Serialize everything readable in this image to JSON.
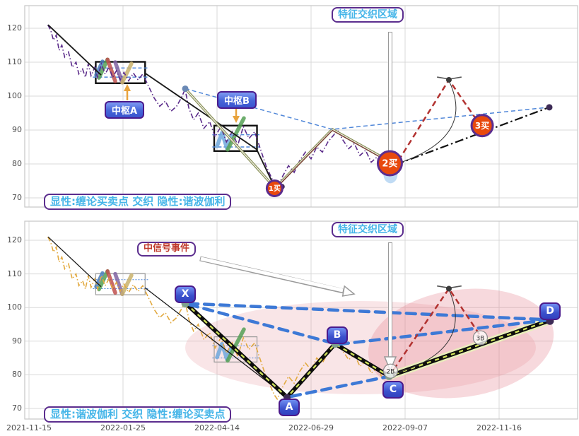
{
  "labels": {
    "feature_zone_top": "特征交织区域",
    "feature_zone_bottom": "特征交织区域",
    "pivot_a": "中枢A",
    "pivot_b": "中枢B",
    "signal_event": "中信号事件",
    "mode_top": "显性:缠论买卖点 交织 隐性:谐波伽利",
    "mode_bottom": "显性:谐波伽利 交织 隐性:缠论买卖点",
    "letter_x": "X",
    "letter_a": "A",
    "letter_b": "B",
    "letter_c": "C",
    "letter_d": "D"
  },
  "chart_data": {
    "type": "line",
    "x_dates": [
      "2021-11-15",
      "2022-01-25",
      "2022-04-14",
      "2022-06-29",
      "2022-09-07",
      "2022-11-16"
    ],
    "y_ticks": [
      120,
      110,
      100,
      90,
      80,
      70
    ],
    "ylim": [
      66.5,
      126.5
    ],
    "price_pts": [
      [
        0.2,
        121
      ],
      [
        0.23,
        119.5
      ],
      [
        0.26,
        116.5
      ],
      [
        0.29,
        118
      ],
      [
        0.32,
        113.5
      ],
      [
        0.35,
        115
      ],
      [
        0.38,
        111.5
      ],
      [
        0.42,
        113
      ],
      [
        0.46,
        108.5
      ],
      [
        0.5,
        110
      ],
      [
        0.53,
        106.5
      ],
      [
        0.57,
        108
      ],
      [
        0.6,
        105.5
      ],
      [
        0.63,
        109.5
      ],
      [
        0.66,
        106
      ],
      [
        0.7,
        108.5
      ],
      [
        0.73,
        105.5
      ],
      [
        0.77,
        109.5
      ],
      [
        0.81,
        106.5
      ],
      [
        0.85,
        108.5
      ],
      [
        0.89,
        105.5
      ],
      [
        0.93,
        107.5
      ],
      [
        0.97,
        104.8
      ],
      [
        1.01,
        107
      ],
      [
        1.06,
        104.5
      ],
      [
        1.11,
        106.8
      ],
      [
        1.16,
        104.8
      ],
      [
        1.21,
        106.5
      ],
      [
        1.27,
        103
      ],
      [
        1.33,
        99.5
      ],
      [
        1.39,
        97
      ],
      [
        1.45,
        98.5
      ],
      [
        1.51,
        95.5
      ],
      [
        1.57,
        97
      ],
      [
        1.62,
        99.5
      ],
      [
        1.66,
        102
      ],
      [
        1.7,
        96.5
      ],
      [
        1.75,
        93
      ],
      [
        1.8,
        95
      ],
      [
        1.86,
        90.5
      ],
      [
        1.92,
        92.5
      ],
      [
        1.98,
        88
      ],
      [
        2.04,
        91
      ],
      [
        2.1,
        86.5
      ],
      [
        2.16,
        89.5
      ],
      [
        2.22,
        85.5
      ],
      [
        2.28,
        91
      ],
      [
        2.34,
        87.5
      ],
      [
        2.4,
        89.5
      ],
      [
        2.46,
        84.5
      ],
      [
        2.52,
        79.5
      ],
      [
        2.57,
        76.5
      ],
      [
        2.61,
        74
      ],
      [
        2.64,
        72.8
      ],
      [
        2.7,
        76.5
      ],
      [
        2.76,
        79.5
      ],
      [
        2.82,
        77.5
      ],
      [
        2.88,
        81
      ],
      [
        2.94,
        83.5
      ],
      [
        3.0,
        81.5
      ],
      [
        3.06,
        85
      ],
      [
        3.12,
        83.5
      ],
      [
        3.18,
        86.5
      ],
      [
        3.24,
        88.5
      ],
      [
        3.28,
        90
      ],
      [
        3.34,
        87
      ],
      [
        3.4,
        84.5
      ],
      [
        3.46,
        86
      ],
      [
        3.52,
        82.5
      ],
      [
        3.58,
        84
      ],
      [
        3.64,
        80.5
      ],
      [
        3.7,
        82
      ],
      [
        3.76,
        79
      ],
      [
        3.82,
        80.5
      ],
      [
        3.87,
        79.5
      ]
    ],
    "panels": [
      {
        "name": "chan-buy-points-panel",
        "price_style": "price-purple",
        "lines": [
          {
            "s": "seg-black",
            "p": [
              [
                0.203,
                121
              ],
              [
                0.767,
                106.2
              ]
            ]
          },
          {
            "s": "seg-black",
            "p": [
              [
                1.233,
                106.8
              ],
              [
                2.421,
                84.3
              ],
              [
                2.617,
                72.9
              ],
              [
                3.226,
                90.2
              ],
              [
                3.878,
                80.1
              ]
            ]
          },
          {
            "s": "olive",
            "p": [
              [
                1.662,
                102.2
              ],
              [
                2.617,
                72.9
              ],
              [
                3.226,
                90.2
              ],
              [
                3.878,
                80.1
              ]
            ]
          },
          {
            "s": "olive-core",
            "p": [
              [
                1.662,
                102.2
              ],
              [
                2.617,
                72.9
              ],
              [
                3.226,
                90.2
              ],
              [
                3.878,
                80.1
              ]
            ]
          },
          {
            "s": "brown",
            "p": [
              [
                2.617,
                72.6
              ],
              [
                3.226,
                89.9
              ],
              [
                3.878,
                79.8
              ]
            ]
          },
          {
            "s": "trend-dash",
            "p": [
              [
                1.662,
                102.2
              ],
              [
                3.226,
                90.2
              ],
              [
                5.534,
                96.7
              ]
            ]
          },
          {
            "s": "dashdot-black",
            "p": [
              [
                3.9,
                79.8
              ],
              [
                5.534,
                96.7
              ]
            ]
          },
          {
            "s": "red-dash",
            "p": [
              [
                3.93,
                81.0
              ],
              [
                4.466,
                104.8
              ],
              [
                4.79,
                91.8
              ]
            ]
          },
          {
            "s": "hat",
            "p": [
              [
                4.34,
                105.6
              ],
              [
                4.45,
                105.1
              ]
            ]
          },
          {
            "s": "hat",
            "p": [
              [
                4.49,
                105.1
              ],
              [
                4.6,
                105.6
              ]
            ]
          }
        ],
        "curves": [
          {
            "s": "arc",
            "p": [
              [
                3.94,
                80.3
              ],
              [
                4.75,
                88.0
              ],
              [
                4.468,
                104.4
              ]
            ]
          }
        ],
        "boxes": [
          {
            "x0": 0.71,
            "x1": 1.235,
            "v0": 103.8,
            "v1": 110.1,
            "cls": "box-black",
            "levels": [
              105.6,
              108.3
            ],
            "lcls": "inner-dash",
            "lx0": 0.68,
            "lx1": 1.27
          },
          {
            "x0": 1.97,
            "x1": 2.425,
            "v0": 83.8,
            "v1": 91.3,
            "cls": "box-black",
            "levels": [
              85.0,
              88.6
            ],
            "lcls": "inner-dash",
            "lx0": 1.95,
            "lx1": 2.45
          }
        ],
        "strokes": [
          {
            "c": "st-blue",
            "p": [
              [
                0.714,
                106.2
              ],
              [
                0.782,
                110.2
              ]
            ]
          },
          {
            "c": "st-green",
            "p": [
              [
                0.744,
                105.4
              ],
              [
                0.835,
                110.8
              ]
            ]
          },
          {
            "c": "st-red",
            "p": [
              [
                0.835,
                110.8
              ],
              [
                0.917,
                104.4
              ]
            ]
          },
          {
            "c": "st-purple",
            "p": [
              [
                0.917,
                110.0
              ],
              [
                0.992,
                104.0
              ]
            ]
          },
          {
            "c": "st-tan",
            "p": [
              [
                0.992,
                104.0
              ],
              [
                1.09,
                109.6
              ]
            ]
          },
          {
            "c": "st-lblue",
            "p": [
              [
                2.0,
                85.2
              ],
              [
                2.053,
                89.2
              ],
              [
                2.105,
                84.6
              ],
              [
                2.15,
                88.3
              ]
            ]
          },
          {
            "c": "st-green",
            "p": [
              [
                2.113,
                84.2
              ],
              [
                2.286,
                93.5
              ]
            ]
          }
        ],
        "markers": [
          {
            "t": "dot",
            "f": 1.662,
            "v": 102.2,
            "c": "#6a89b5",
            "r": 4.5
          },
          {
            "t": "dot",
            "f": 2.69,
            "v": 73.3,
            "c": "#3d2b56",
            "r": 4
          },
          {
            "t": "dot",
            "f": 5.534,
            "v": 96.7,
            "c": "#3d2b56",
            "r": 4.5
          },
          {
            "t": "dot",
            "f": 4.466,
            "v": 104.8,
            "c": "#3a3a3a",
            "r": 4
          },
          {
            "t": "glow",
            "f": 3.845,
            "v": 77.0
          },
          {
            "t": "buy",
            "f": 2.612,
            "v": 72.8,
            "r": 11,
            "fs": 10,
            "label": "1买"
          },
          {
            "t": "buy",
            "f": 3.838,
            "v": 80.2,
            "r": 17,
            "fs": 13,
            "label": "2买"
          },
          {
            "t": "buy",
            "f": 4.82,
            "v": 91.3,
            "r": 15,
            "fs": 12,
            "label": "3买"
          }
        ]
      },
      {
        "name": "harmonic-gartley-panel",
        "price_style": "price-gold",
        "lines": [
          {
            "s": "seg-thin",
            "p": [
              [
                0.203,
                121
              ],
              [
                0.767,
                106.2
              ]
            ]
          },
          {
            "s": "seg-thin",
            "p": [
              [
                1.233,
                105.9
              ],
              [
                2.745,
                73.4
              ],
              [
                3.256,
                89.2
              ],
              [
                3.83,
                79.4
              ]
            ]
          },
          {
            "s": "halo",
            "p": [
              [
                3.83,
                79.6
              ],
              [
                5.541,
                96.2
              ]
            ]
          },
          {
            "s": "thick-black",
            "p": [
              [
                1.662,
                101.4
              ],
              [
                2.745,
                73.3
              ],
              [
                3.256,
                89.2
              ],
              [
                3.83,
                79.6
              ],
              [
                5.541,
                96.2
              ]
            ]
          },
          {
            "s": "lime-stripe",
            "p": [
              [
                1.662,
                101.4
              ],
              [
                2.745,
                73.3
              ],
              [
                3.256,
                89.2
              ],
              [
                3.83,
                79.6
              ],
              [
                5.541,
                96.2
              ]
            ]
          },
          {
            "s": "blue-thick-dash",
            "p": [
              [
                1.7,
                101.2
              ],
              [
                5.5,
                96.4
              ]
            ]
          },
          {
            "s": "blue-thick-dash",
            "p": [
              [
                1.7,
                100.9
              ],
              [
                3.24,
                89.4
              ]
            ]
          },
          {
            "s": "blue-thick-dash",
            "p": [
              [
                3.3,
                89.1
              ],
              [
                5.5,
                96.2
              ]
            ]
          },
          {
            "s": "blue-thick-dash",
            "p": [
              [
                2.79,
                73.6
              ],
              [
                3.79,
                79.3
              ]
            ]
          },
          {
            "s": "red-dash",
            "p": [
              [
                3.88,
                81.6
              ],
              [
                4.466,
                105.6
              ],
              [
                4.81,
                91.2
              ]
            ]
          },
          {
            "s": "hat",
            "p": [
              [
                4.34,
                106.4
              ],
              [
                4.45,
                105.9
              ]
            ]
          },
          {
            "s": "hat",
            "p": [
              [
                4.49,
                105.9
              ],
              [
                4.6,
                106.4
              ]
            ]
          }
        ],
        "curves": [
          {
            "s": "arc",
            "p": [
              [
                3.85,
                80.0
              ],
              [
                4.75,
                87.0
              ],
              [
                4.468,
                105.2
              ]
            ]
          }
        ],
        "boxes": [
          {
            "x0": 0.71,
            "x1": 1.235,
            "v0": 103.8,
            "v1": 110.1,
            "cls": "box-gray",
            "levels": [
              105.6,
              108.3
            ],
            "lcls": "inner-dot",
            "lx0": 0.68,
            "lx1": 1.27
          },
          {
            "x0": 1.97,
            "x1": 2.425,
            "v0": 83.8,
            "v1": 91.3,
            "cls": "box-gray",
            "levels": [
              85.0,
              88.6
            ],
            "lcls": "inner-dot",
            "lx0": 1.95,
            "lx1": 2.45
          }
        ],
        "strokes": [
          {
            "c": "st-blue",
            "p": [
              [
                0.714,
                106.2
              ],
              [
                0.782,
                110.2
              ]
            ]
          },
          {
            "c": "st-green",
            "p": [
              [
                0.744,
                105.4
              ],
              [
                0.835,
                110.8
              ]
            ]
          },
          {
            "c": "st-red",
            "p": [
              [
                0.835,
                110.8
              ],
              [
                0.917,
                104.4
              ]
            ]
          },
          {
            "c": "st-purple",
            "p": [
              [
                0.917,
                110.0
              ],
              [
                0.992,
                104.0
              ]
            ]
          },
          {
            "c": "st-tan",
            "p": [
              [
                0.992,
                104.0
              ],
              [
                1.09,
                109.6
              ]
            ]
          },
          {
            "c": "st-lblue",
            "p": [
              [
                2.0,
                85.2
              ],
              [
                2.053,
                89.2
              ],
              [
                2.105,
                84.6
              ],
              [
                2.15,
                88.3
              ]
            ]
          },
          {
            "c": "st-green",
            "p": [
              [
                2.113,
                84.2
              ],
              [
                2.286,
                93.5
              ]
            ]
          }
        ],
        "markers": [
          {
            "t": "dot",
            "f": 1.662,
            "v": 101.2,
            "c": "#7fa28c",
            "r": 5.5
          },
          {
            "t": "dot",
            "f": 3.256,
            "v": 89.2,
            "c": "#7fa28c",
            "r": 5.5
          },
          {
            "t": "dot",
            "f": 3.83,
            "v": 79.6,
            "c": "#7fa28c",
            "r": 5.5
          },
          {
            "t": "dot",
            "f": 2.745,
            "v": 73.2,
            "c": "#3d2b56",
            "r": 5
          },
          {
            "t": "dot",
            "f": 5.541,
            "v": 96.0,
            "c": "#3d2b56",
            "r": 5.5
          },
          {
            "t": "dot",
            "f": 4.466,
            "v": 105.6,
            "c": "#3a3a3a",
            "r": 4
          },
          {
            "t": "circle",
            "f": 3.845,
            "v": 81.1,
            "r": 10,
            "fs": 9,
            "label": "2B"
          },
          {
            "t": "circle",
            "f": 4.8,
            "v": 91.0,
            "r": 10,
            "fs": 9,
            "label": "3B"
          }
        ]
      }
    ],
    "key_points": {
      "harmonic": {
        "X": 101.4,
        "A": 73.3,
        "B": 89.2,
        "C": 79.6,
        "D": 96.2
      },
      "buy_points": {
        "buy1": 72.8,
        "buy2": 80.2,
        "buy3": 91.3
      },
      "forecast_peak": 105
    }
  }
}
